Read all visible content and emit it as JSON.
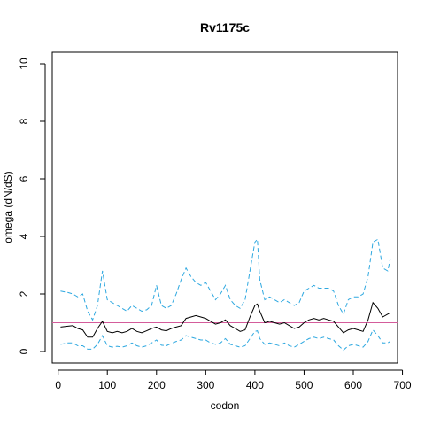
{
  "chart_data": {
    "type": "line",
    "title": "Rv1175c",
    "xlabel": "codon",
    "ylabel": "omega (dN/dS)",
    "xlim": [
      -12,
      690
    ],
    "ylim": [
      -0.4,
      10.4
    ],
    "x_ticks": [
      "0",
      "100",
      "200",
      "300",
      "400",
      "500",
      "600",
      "700"
    ],
    "y_ticks": [
      "0",
      "2",
      "4",
      "6",
      "8",
      "10"
    ],
    "reference_line": {
      "y": 1,
      "color": "#d45c9b"
    },
    "grid": false,
    "legend": "none",
    "series": [
      {
        "role": "estimate",
        "color": "#000000",
        "style": "solid",
        "x": [
          5,
          20,
          30,
          40,
          50,
          60,
          70,
          80,
          90,
          100,
          110,
          120,
          130,
          140,
          150,
          160,
          170,
          180,
          190,
          200,
          210,
          220,
          230,
          240,
          250,
          260,
          270,
          280,
          290,
          300,
          310,
          320,
          330,
          340,
          350,
          360,
          370,
          380,
          390,
          400,
          405,
          410,
          420,
          430,
          440,
          450,
          460,
          470,
          480,
          490,
          500,
          510,
          520,
          530,
          540,
          550,
          560,
          570,
          580,
          590,
          600,
          610,
          620,
          630,
          640,
          650,
          660,
          670,
          675
        ],
        "y": [
          0.85,
          0.88,
          0.9,
          0.8,
          0.75,
          0.5,
          0.5,
          0.8,
          1.05,
          0.7,
          0.65,
          0.7,
          0.65,
          0.7,
          0.8,
          0.7,
          0.65,
          0.72,
          0.8,
          0.85,
          0.75,
          0.72,
          0.8,
          0.85,
          0.9,
          1.15,
          1.2,
          1.25,
          1.2,
          1.15,
          1.05,
          0.95,
          1.0,
          1.1,
          0.9,
          0.8,
          0.7,
          0.75,
          1.2,
          1.6,
          1.65,
          1.4,
          1.0,
          1.05,
          1.0,
          0.95,
          1.0,
          0.9,
          0.8,
          0.85,
          1.0,
          1.1,
          1.15,
          1.1,
          1.15,
          1.1,
          1.05,
          0.85,
          0.65,
          0.75,
          0.8,
          0.75,
          0.7,
          1.1,
          1.7,
          1.5,
          1.2,
          1.3,
          1.35
        ]
      },
      {
        "role": "upper",
        "color": "#2ea8e0",
        "style": "dashed",
        "x": [
          5,
          20,
          30,
          40,
          50,
          60,
          70,
          80,
          90,
          100,
          110,
          120,
          130,
          140,
          150,
          160,
          170,
          180,
          190,
          200,
          210,
          220,
          230,
          240,
          250,
          260,
          270,
          280,
          290,
          300,
          310,
          320,
          330,
          340,
          350,
          360,
          370,
          380,
          390,
          400,
          405,
          410,
          420,
          430,
          440,
          450,
          460,
          470,
          480,
          490,
          500,
          510,
          520,
          530,
          540,
          550,
          560,
          570,
          580,
          590,
          600,
          610,
          620,
          630,
          640,
          650,
          660,
          670,
          675
        ],
        "y": [
          2.1,
          2.05,
          2.0,
          1.9,
          2.0,
          1.4,
          1.1,
          1.6,
          2.8,
          1.8,
          1.7,
          1.6,
          1.5,
          1.4,
          1.6,
          1.5,
          1.4,
          1.45,
          1.6,
          2.3,
          1.6,
          1.5,
          1.6,
          2.0,
          2.5,
          2.9,
          2.6,
          2.4,
          2.3,
          2.4,
          2.1,
          1.8,
          2.0,
          2.3,
          1.8,
          1.6,
          1.5,
          1.8,
          2.8,
          3.8,
          3.9,
          2.5,
          1.8,
          1.9,
          1.8,
          1.7,
          1.8,
          1.7,
          1.6,
          1.7,
          2.1,
          2.2,
          2.3,
          2.2,
          2.2,
          2.2,
          2.1,
          1.6,
          1.3,
          1.8,
          1.9,
          1.9,
          2.0,
          2.6,
          3.8,
          3.9,
          2.9,
          2.8,
          3.2
        ]
      },
      {
        "role": "lower",
        "color": "#2ea8e0",
        "style": "dashed",
        "x": [
          5,
          20,
          30,
          40,
          50,
          60,
          70,
          80,
          90,
          100,
          110,
          120,
          130,
          140,
          150,
          160,
          170,
          180,
          190,
          200,
          210,
          220,
          230,
          240,
          250,
          260,
          270,
          280,
          290,
          300,
          310,
          320,
          330,
          340,
          350,
          360,
          370,
          380,
          390,
          400,
          405,
          410,
          420,
          430,
          440,
          450,
          460,
          470,
          480,
          490,
          500,
          510,
          520,
          530,
          540,
          550,
          560,
          570,
          580,
          590,
          600,
          610,
          620,
          630,
          640,
          650,
          660,
          670,
          675
        ],
        "y": [
          0.25,
          0.3,
          0.3,
          0.2,
          0.2,
          0.08,
          0.08,
          0.25,
          0.55,
          0.2,
          0.15,
          0.18,
          0.15,
          0.2,
          0.3,
          0.2,
          0.15,
          0.2,
          0.3,
          0.4,
          0.22,
          0.2,
          0.28,
          0.35,
          0.4,
          0.55,
          0.5,
          0.45,
          0.4,
          0.4,
          0.3,
          0.25,
          0.3,
          0.45,
          0.25,
          0.2,
          0.15,
          0.2,
          0.45,
          0.7,
          0.72,
          0.45,
          0.25,
          0.3,
          0.25,
          0.2,
          0.3,
          0.2,
          0.15,
          0.25,
          0.35,
          0.45,
          0.5,
          0.45,
          0.5,
          0.45,
          0.4,
          0.2,
          0.05,
          0.2,
          0.25,
          0.2,
          0.15,
          0.35,
          0.75,
          0.55,
          0.3,
          0.3,
          0.35
        ]
      }
    ]
  }
}
